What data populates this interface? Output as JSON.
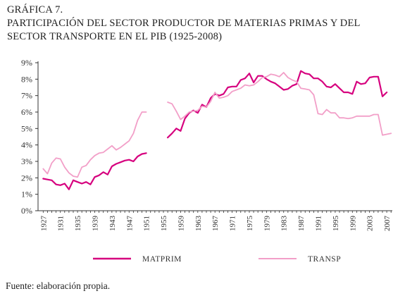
{
  "figure": {
    "label": "GRÁFICA 7.",
    "title": "PARTICIPACIÓN DEL SECTOR PRODUCTOR DE MATERIAS PRIMAS Y DEL SECTOR TRANSPORTE EN EL PIB (1925-2008)",
    "source": "Fuente: elaboración propia."
  },
  "chart_data": {
    "type": "line",
    "title": "PARTICIPACIÓN DEL SECTOR PRODUCTOR DE MATERIAS PRIMAS Y DEL SECTOR TRANSPORTE EN EL PIB (1925-2008)",
    "xlabel": "",
    "ylabel": "",
    "xlim": [
      1927,
      2008
    ],
    "ylim": [
      0,
      9
    ],
    "y_ticks": [
      "0%",
      "1%",
      "2%",
      "3%",
      "4%",
      "5%",
      "6%",
      "7%",
      "8%",
      "9%"
    ],
    "x_ticks": [
      "1927",
      "1931",
      "1935",
      "1939",
      "1943",
      "1947",
      "1951",
      "1955",
      "1959",
      "1963",
      "1967",
      "1971",
      "1975",
      "1979",
      "1983",
      "1987",
      "1991",
      "1995",
      "1999",
      "2003",
      "2007"
    ],
    "grid": false,
    "legend_position": "bottom",
    "series": [
      {
        "name": "MATPRIM",
        "color": "#d6007e",
        "segments": [
          [
            [
              1927,
              1.95
            ],
            [
              1928,
              1.9
            ],
            [
              1929,
              1.85
            ],
            [
              1930,
              1.6
            ],
            [
              1931,
              1.55
            ],
            [
              1932,
              1.65
            ],
            [
              1933,
              1.3
            ],
            [
              1934,
              1.85
            ],
            [
              1935,
              1.75
            ],
            [
              1936,
              1.65
            ],
            [
              1937,
              1.75
            ],
            [
              1938,
              1.6
            ],
            [
              1939,
              2.05
            ],
            [
              1940,
              2.15
            ],
            [
              1941,
              2.35
            ],
            [
              1942,
              2.2
            ],
            [
              1943,
              2.7
            ],
            [
              1944,
              2.85
            ],
            [
              1945,
              2.95
            ],
            [
              1946,
              3.05
            ],
            [
              1947,
              3.1
            ],
            [
              1948,
              3.0
            ],
            [
              1949,
              3.3
            ],
            [
              1950,
              3.45
            ],
            [
              1951,
              3.5
            ]
          ],
          [
            [
              1956,
              4.45
            ],
            [
              1957,
              4.7
            ],
            [
              1958,
              5.0
            ],
            [
              1959,
              4.85
            ],
            [
              1960,
              5.6
            ],
            [
              1961,
              5.95
            ],
            [
              1962,
              6.1
            ],
            [
              1963,
              5.95
            ],
            [
              1964,
              6.45
            ],
            [
              1965,
              6.3
            ],
            [
              1966,
              6.85
            ],
            [
              1967,
              7.1
            ],
            [
              1968,
              7.0
            ],
            [
              1969,
              7.1
            ],
            [
              1970,
              7.5
            ],
            [
              1971,
              7.55
            ],
            [
              1972,
              7.55
            ],
            [
              1973,
              7.95
            ],
            [
              1974,
              8.05
            ],
            [
              1975,
              8.35
            ],
            [
              1976,
              7.8
            ],
            [
              1977,
              8.2
            ],
            [
              1978,
              8.2
            ],
            [
              1979,
              8.0
            ],
            [
              1980,
              7.85
            ],
            [
              1981,
              7.75
            ],
            [
              1982,
              7.55
            ],
            [
              1983,
              7.35
            ],
            [
              1984,
              7.4
            ],
            [
              1985,
              7.6
            ],
            [
              1986,
              7.7
            ],
            [
              1987,
              8.5
            ],
            [
              1988,
              8.35
            ],
            [
              1989,
              8.3
            ],
            [
              1990,
              8.05
            ],
            [
              1991,
              8.05
            ],
            [
              1992,
              7.85
            ],
            [
              1993,
              7.55
            ],
            [
              1994,
              7.5
            ],
            [
              1995,
              7.7
            ],
            [
              1996,
              7.45
            ],
            [
              1997,
              7.2
            ],
            [
              1998,
              7.2
            ],
            [
              1999,
              7.1
            ],
            [
              2000,
              7.85
            ],
            [
              2001,
              7.7
            ],
            [
              2002,
              7.75
            ],
            [
              2003,
              8.1
            ],
            [
              2004,
              8.15
            ],
            [
              2005,
              8.15
            ],
            [
              2006,
              6.95
            ],
            [
              2007,
              7.2
            ]
          ]
        ]
      },
      {
        "name": "TRANSP",
        "color": "#f29fc8",
        "segments": [
          [
            [
              1927,
              2.55
            ],
            [
              1928,
              2.25
            ],
            [
              1929,
              2.9
            ],
            [
              1930,
              3.2
            ],
            [
              1931,
              3.15
            ],
            [
              1932,
              2.65
            ],
            [
              1933,
              2.3
            ],
            [
              1934,
              2.1
            ],
            [
              1935,
              2.05
            ],
            [
              1936,
              2.65
            ],
            [
              1937,
              2.75
            ],
            [
              1938,
              3.1
            ],
            [
              1939,
              3.35
            ],
            [
              1940,
              3.5
            ],
            [
              1941,
              3.55
            ],
            [
              1942,
              3.75
            ],
            [
              1943,
              3.95
            ],
            [
              1944,
              3.7
            ],
            [
              1945,
              3.85
            ],
            [
              1946,
              4.05
            ],
            [
              1947,
              4.25
            ],
            [
              1948,
              4.7
            ],
            [
              1949,
              5.5
            ],
            [
              1950,
              6.0
            ],
            [
              1951,
              6.0
            ]
          ],
          [
            [
              1956,
              6.6
            ],
            [
              1957,
              6.5
            ],
            [
              1958,
              6.05
            ],
            [
              1959,
              5.55
            ],
            [
              1960,
              5.75
            ],
            [
              1961,
              6.0
            ],
            [
              1962,
              6.05
            ],
            [
              1963,
              6.1
            ],
            [
              1964,
              6.35
            ],
            [
              1965,
              6.3
            ],
            [
              1966,
              6.65
            ],
            [
              1967,
              7.2
            ],
            [
              1968,
              6.85
            ],
            [
              1969,
              6.9
            ],
            [
              1970,
              7.0
            ],
            [
              1971,
              7.25
            ],
            [
              1972,
              7.35
            ],
            [
              1973,
              7.45
            ],
            [
              1974,
              7.65
            ],
            [
              1975,
              7.6
            ],
            [
              1976,
              7.65
            ],
            [
              1977,
              7.85
            ],
            [
              1978,
              8.1
            ],
            [
              1979,
              8.15
            ],
            [
              1980,
              8.3
            ],
            [
              1981,
              8.25
            ],
            [
              1982,
              8.15
            ],
            [
              1983,
              8.4
            ],
            [
              1984,
              8.1
            ],
            [
              1985,
              7.95
            ],
            [
              1986,
              7.85
            ],
            [
              1987,
              7.45
            ],
            [
              1988,
              7.4
            ],
            [
              1989,
              7.35
            ],
            [
              1990,
              7.05
            ],
            [
              1991,
              5.9
            ],
            [
              1992,
              5.85
            ],
            [
              1993,
              6.15
            ],
            [
              1994,
              5.95
            ],
            [
              1995,
              5.95
            ],
            [
              1996,
              5.65
            ],
            [
              1997,
              5.65
            ],
            [
              1998,
              5.6
            ],
            [
              1999,
              5.65
            ],
            [
              2000,
              5.75
            ],
            [
              2001,
              5.75
            ],
            [
              2002,
              5.75
            ],
            [
              2003,
              5.75
            ],
            [
              2004,
              5.85
            ],
            [
              2005,
              5.85
            ],
            [
              2006,
              4.6
            ],
            [
              2007,
              4.65
            ],
            [
              2008,
              4.7
            ]
          ]
        ]
      }
    ]
  }
}
